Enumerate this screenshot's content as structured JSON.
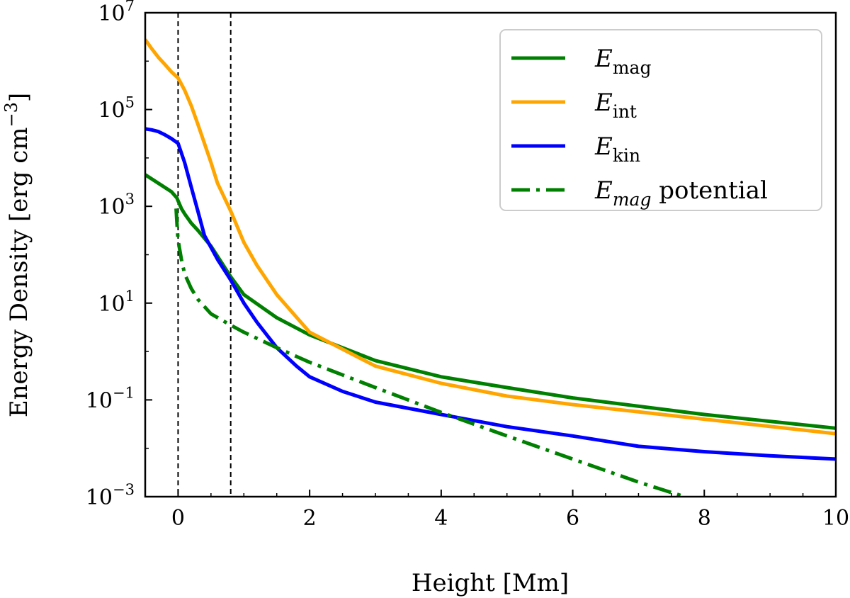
{
  "chart_data": {
    "type": "line",
    "xlabel": "Height [Mm]",
    "ylabel": "Energy Density [erg cm",
    "ylabel_exponent": "−3",
    "ylabel_close": "]",
    "y_scale": "log",
    "xlim": [
      -0.5,
      10
    ],
    "ylim": [
      0.001,
      10000000
    ],
    "x_ticks": [
      0,
      2,
      4,
      6,
      8,
      10
    ],
    "x_tick_labels": [
      "0",
      "2",
      "4",
      "6",
      "8",
      "10"
    ],
    "x_minor_tick_step": 0.5,
    "y_ticks": [
      0.001,
      0.1,
      10,
      1000,
      100000,
      10000000
    ],
    "y_tick_labels": [
      {
        "base": "10",
        "exp": "−3"
      },
      {
        "base": "10",
        "exp": "−1"
      },
      {
        "base": "10",
        "exp": "1"
      },
      {
        "base": "10",
        "exp": "3"
      },
      {
        "base": "10",
        "exp": "5"
      },
      {
        "base": "10",
        "exp": "7"
      }
    ],
    "grid": false,
    "legend_position": "top-right",
    "vertical_lines": [
      0,
      0.8
    ],
    "series": [
      {
        "name": "E",
        "name_sub": "mag",
        "name_style": "subscript",
        "color": "#008000",
        "dash": "solid",
        "x": [
          -0.5,
          -0.3,
          -0.1,
          -0.02,
          0,
          0.05,
          0.1,
          0.2,
          0.3,
          0.5,
          0.8,
          1.0,
          1.5,
          2.0,
          3.0,
          4.0,
          5.0,
          6.0,
          8.0,
          10.0
        ],
        "y": [
          4500,
          3000,
          2000,
          1500,
          1300,
          900,
          700,
          450,
          320,
          150,
          35,
          15,
          5,
          2.2,
          0.65,
          0.3,
          0.18,
          0.11,
          0.05,
          0.026
        ]
      },
      {
        "name": "E",
        "name_sub": "int",
        "name_style": "subscript",
        "color": "#ffa500",
        "dash": "solid",
        "x": [
          -0.5,
          -0.4,
          -0.3,
          -0.2,
          -0.1,
          0,
          0.1,
          0.2,
          0.3,
          0.4,
          0.5,
          0.6,
          0.8,
          1.0,
          1.2,
          1.5,
          2.0,
          3.0,
          4.0,
          5.0,
          6.0,
          8.0,
          10.0
        ],
        "y": [
          2800000,
          1800000,
          1200000,
          850000,
          600000,
          450000,
          250000,
          120000,
          50000,
          20000,
          8000,
          3000,
          800,
          180,
          60,
          15,
          2.5,
          0.5,
          0.22,
          0.12,
          0.08,
          0.04,
          0.02
        ]
      },
      {
        "name": "E",
        "name_sub": "kin",
        "name_style": "subscript",
        "color": "#0000ff",
        "dash": "solid",
        "x": [
          -0.5,
          -0.4,
          -0.3,
          -0.2,
          -0.1,
          0,
          0.1,
          0.2,
          0.3,
          0.4,
          0.6,
          0.8,
          1.0,
          1.2,
          1.5,
          1.8,
          2.0,
          2.5,
          3.0,
          4.0,
          5.0,
          6.0,
          7.0,
          8.0,
          9.0,
          10.0
        ],
        "y": [
          40000,
          38000,
          35000,
          30000,
          25000,
          20000,
          8000,
          2500,
          800,
          250,
          80,
          30,
          10,
          4,
          1.2,
          0.5,
          0.3,
          0.15,
          0.09,
          0.05,
          0.028,
          0.018,
          0.011,
          0.0085,
          0.007,
          0.006
        ]
      },
      {
        "name": "E",
        "name_sub": "mag",
        "name_style": "italic-subscript",
        "name_suffix": "potential",
        "color": "#008000",
        "dash": "dashdot",
        "x": [
          -0.03,
          -0.02,
          -0.01,
          0,
          0.05,
          0.1,
          0.2,
          0.3,
          0.5,
          0.8,
          1.0,
          1.5,
          2.0,
          3.0,
          4.0,
          5.0,
          6.0,
          7.0,
          7.7
        ],
        "y": [
          900,
          500,
          300,
          200,
          80,
          40,
          20,
          12,
          6,
          3.5,
          2.5,
          1.2,
          0.6,
          0.18,
          0.055,
          0.018,
          0.006,
          0.002,
          0.001
        ]
      }
    ]
  }
}
